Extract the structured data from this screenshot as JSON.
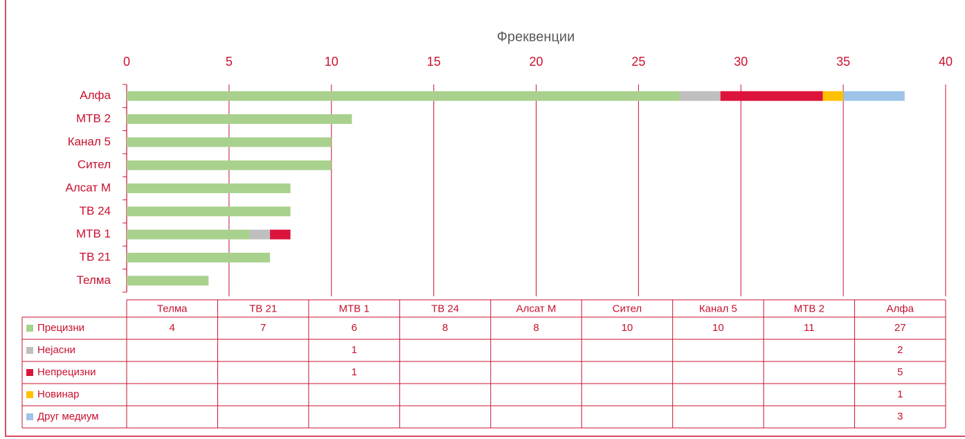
{
  "chart_data": {
    "type": "bar",
    "orientation": "horizontal",
    "stacked": true,
    "x_label": "Фреквенции",
    "categories": [
      "Телма",
      "ТВ 21",
      "МТВ 1",
      "ТВ 24",
      "Алсат М",
      "Сител",
      "Канал 5",
      "МТВ 2",
      "Алфа"
    ],
    "series": [
      {
        "name": "Прецизни",
        "color": "#a9d18e",
        "values": [
          4,
          7,
          6,
          8,
          8,
          10,
          10,
          11,
          27
        ]
      },
      {
        "name": "Нејасни",
        "color": "#bfbfbf",
        "values": [
          null,
          null,
          1,
          null,
          null,
          null,
          null,
          null,
          2
        ]
      },
      {
        "name": "Непрецизни",
        "color": "#dc143c",
        "values": [
          null,
          null,
          1,
          null,
          null,
          null,
          null,
          null,
          5
        ]
      },
      {
        "name": "Новинар",
        "color": "#ffc000",
        "values": [
          null,
          null,
          null,
          null,
          null,
          null,
          null,
          null,
          1
        ]
      },
      {
        "name": "Друг медиум",
        "color": "#9dc3e6",
        "values": [
          null,
          null,
          null,
          null,
          null,
          null,
          null,
          null,
          3
        ]
      }
    ],
    "xlim": [
      0,
      40
    ],
    "xticks": [
      0,
      5,
      10,
      15,
      20,
      25,
      30,
      35,
      40
    ],
    "grid": true,
    "data_table": true
  }
}
